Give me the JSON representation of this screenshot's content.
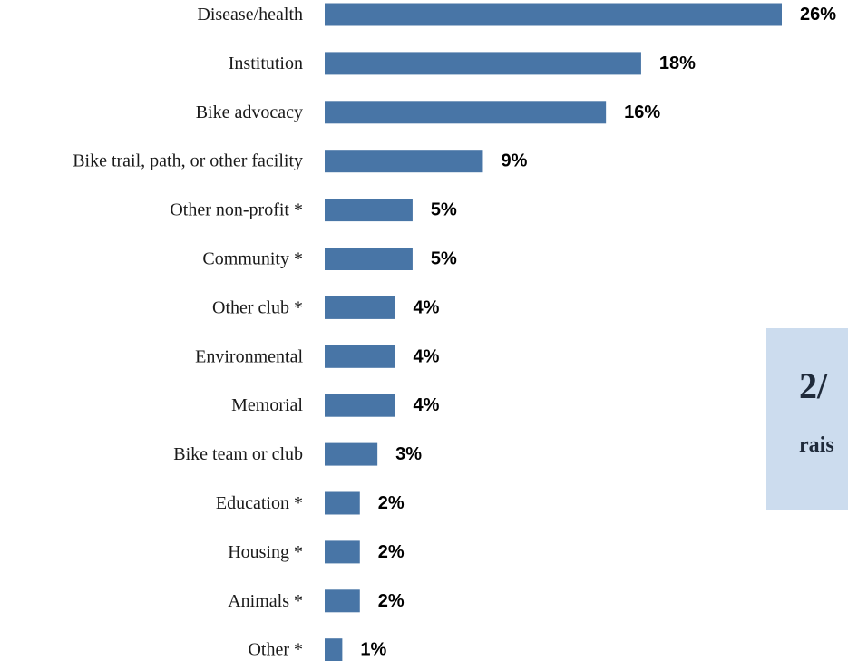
{
  "chart_data": {
    "type": "bar",
    "orientation": "horizontal",
    "categories": [
      "Disease/health",
      "Institution",
      "Bike advocacy",
      "Bike trail, path, or other facility",
      "Other non-profit *",
      "Community *",
      "Other club *",
      "Environmental",
      "Memorial",
      "Bike team or club",
      "Education *",
      "Housing *",
      "Animals *",
      "Other *"
    ],
    "values": [
      26,
      18,
      16,
      9,
      5,
      5,
      4,
      4,
      4,
      3,
      2,
      2,
      2,
      1
    ],
    "value_labels": [
      "26%",
      "18%",
      "16%",
      "9%",
      "5%",
      "5%",
      "4%",
      "4%",
      "4%",
      "3%",
      "2%",
      "2%",
      "2%",
      "1%"
    ],
    "title": "",
    "xlabel": "",
    "ylabel": "",
    "xlim": [
      0,
      26
    ],
    "grid": false,
    "legend": "none",
    "bar_color": "#4875a6"
  },
  "callout": {
    "main_text": "2/",
    "sub_text": "rais",
    "background_color": "#ccdcee"
  }
}
